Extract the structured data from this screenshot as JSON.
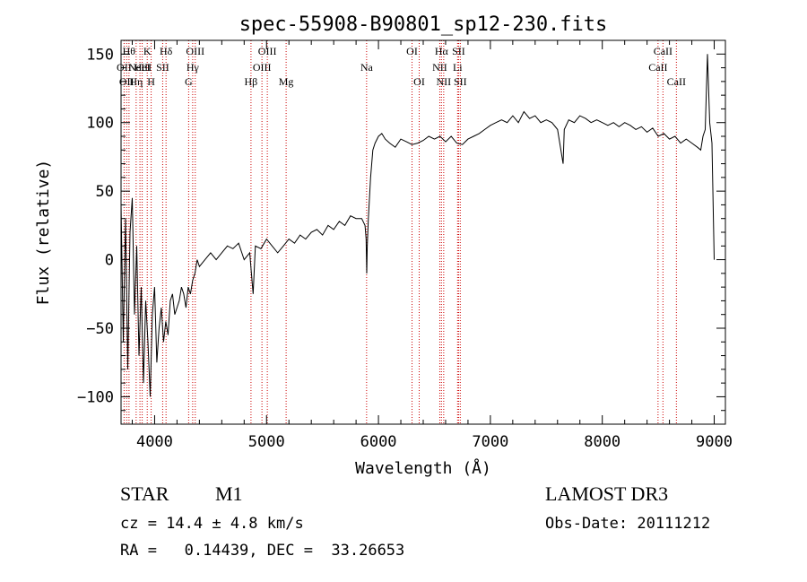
{
  "chart_data": {
    "type": "line",
    "title": "spec-55908-B90801_sp12-230.fits",
    "xlabel": "Wavelength (Å)",
    "ylabel": "Flux (relative)",
    "xlim": [
      3700,
      9100
    ],
    "ylim": [
      -120,
      160
    ],
    "xticks": [
      4000,
      5000,
      6000,
      7000,
      8000,
      9000
    ],
    "yticks": [
      -100,
      -50,
      0,
      50,
      100,
      150
    ],
    "ytick_labels": [
      "−100",
      "−50",
      "0",
      "50",
      "100",
      "150"
    ],
    "line_color": "#000000",
    "marker_color": "#cc0000",
    "grid": false,
    "series": [
      {
        "x": [
          3700,
          3720,
          3740,
          3760,
          3780,
          3800,
          3820,
          3840,
          3860,
          3880,
          3900,
          3920,
          3940,
          3960,
          3980,
          4000,
          4020,
          4040,
          4060,
          4080,
          4100,
          4120,
          4140,
          4160,
          4180,
          4200,
          4220,
          4240,
          4260,
          4280,
          4300,
          4320,
          4340,
          4360,
          4380,
          4400,
          4450,
          4500,
          4550,
          4600,
          4650,
          4700,
          4750,
          4800,
          4850,
          4880,
          4900,
          4950,
          5000,
          5050,
          5100,
          5150,
          5200,
          5250,
          5300,
          5350,
          5400,
          5450,
          5500,
          5550,
          5600,
          5650,
          5700,
          5750,
          5800,
          5850,
          5880,
          5890,
          5895,
          5900,
          5910,
          5930,
          5950,
          5970,
          6000,
          6030,
          6060,
          6100,
          6150,
          6200,
          6250,
          6300,
          6350,
          6400,
          6450,
          6500,
          6550,
          6600,
          6650,
          6700,
          6750,
          6800,
          6850,
          6900,
          6950,
          7000,
          7050,
          7100,
          7150,
          7200,
          7250,
          7300,
          7350,
          7400,
          7450,
          7500,
          7550,
          7600,
          7650,
          7660,
          7700,
          7750,
          7800,
          7850,
          7900,
          7950,
          8000,
          8050,
          8100,
          8150,
          8200,
          8250,
          8300,
          8350,
          8400,
          8450,
          8500,
          8550,
          8600,
          8650,
          8700,
          8750,
          8800,
          8850,
          8880,
          8900,
          8920,
          8940,
          8960,
          8980,
          9000
        ],
        "y": [
          40,
          -60,
          30,
          -80,
          20,
          45,
          -40,
          10,
          -70,
          -20,
          -90,
          -30,
          -60,
          -100,
          -40,
          -20,
          -75,
          -50,
          -35,
          -60,
          -45,
          -55,
          -30,
          -25,
          -40,
          -35,
          -30,
          -20,
          -25,
          -35,
          -20,
          -25,
          -15,
          -10,
          0,
          -5,
          0,
          5,
          0,
          5,
          10,
          8,
          12,
          0,
          5,
          -25,
          10,
          8,
          15,
          10,
          5,
          10,
          15,
          12,
          18,
          15,
          20,
          22,
          18,
          25,
          22,
          28,
          25,
          32,
          30,
          30,
          25,
          15,
          -10,
          10,
          30,
          60,
          80,
          85,
          90,
          92,
          88,
          85,
          82,
          88,
          86,
          84,
          85,
          87,
          90,
          88,
          90,
          86,
          90,
          85,
          84,
          88,
          90,
          92,
          95,
          98,
          100,
          102,
          100,
          105,
          100,
          108,
          103,
          105,
          100,
          102,
          100,
          95,
          70,
          95,
          102,
          100,
          105,
          103,
          100,
          102,
          100,
          98,
          100,
          97,
          100,
          98,
          95,
          97,
          93,
          96,
          90,
          92,
          88,
          90,
          85,
          88,
          85,
          82,
          80,
          90,
          95,
          150,
          100,
          85,
          0
        ]
      }
    ],
    "line_markers": [
      {
        "x": 3727,
        "label": "OII",
        "row": 1
      },
      {
        "x": 3750,
        "label": "OII",
        "row": 2
      },
      {
        "x": 3771,
        "label": "Hθ",
        "row": 0
      },
      {
        "x": 3835,
        "label": "Hη",
        "row": 2
      },
      {
        "x": 3869,
        "label": "NeIII",
        "row": 1
      },
      {
        "x": 3889,
        "label": "HeI",
        "row": 1
      },
      {
        "x": 3934,
        "label": "K",
        "row": 0
      },
      {
        "x": 3969,
        "label": "H",
        "row": 2
      },
      {
        "x": 4072,
        "label": "SII",
        "row": 1
      },
      {
        "x": 4102,
        "label": "Hδ",
        "row": 0
      },
      {
        "x": 4304,
        "label": "G",
        "row": 2
      },
      {
        "x": 4340,
        "label": "Hγ",
        "row": 1
      },
      {
        "x": 4363,
        "label": "OIII",
        "row": 0
      },
      {
        "x": 4861,
        "label": "Hβ",
        "row": 2
      },
      {
        "x": 4959,
        "label": "OIII",
        "row": 1
      },
      {
        "x": 5007,
        "label": "OIII",
        "row": 0
      },
      {
        "x": 5175,
        "label": "Mg",
        "row": 2
      },
      {
        "x": 5894,
        "label": "Na",
        "row": 1
      },
      {
        "x": 6300,
        "label": "OI",
        "row": 0
      },
      {
        "x": 6364,
        "label": "OI",
        "row": 2
      },
      {
        "x": 6548,
        "label": "NII",
        "row": 1
      },
      {
        "x": 6563,
        "label": "Hα",
        "row": 0
      },
      {
        "x": 6583,
        "label": "NII",
        "row": 2
      },
      {
        "x": 6707,
        "label": "Li",
        "row": 1
      },
      {
        "x": 6716,
        "label": "SII",
        "row": 0
      },
      {
        "x": 6731,
        "label": "SII",
        "row": 2
      },
      {
        "x": 8498,
        "label": "CaII",
        "row": 1
      },
      {
        "x": 8542,
        "label": "CaII",
        "row": 0
      },
      {
        "x": 8662,
        "label": "CaII",
        "row": 2
      }
    ]
  },
  "footer": {
    "object_class": "STAR",
    "subclass": "M1",
    "survey": "LAMOST DR3",
    "cz_line": "cz = 14.4 ± 4.8 km/s",
    "obs_date": "Obs-Date: 20111212",
    "radec": "RA =   0.14439, DEC =  33.26653"
  }
}
